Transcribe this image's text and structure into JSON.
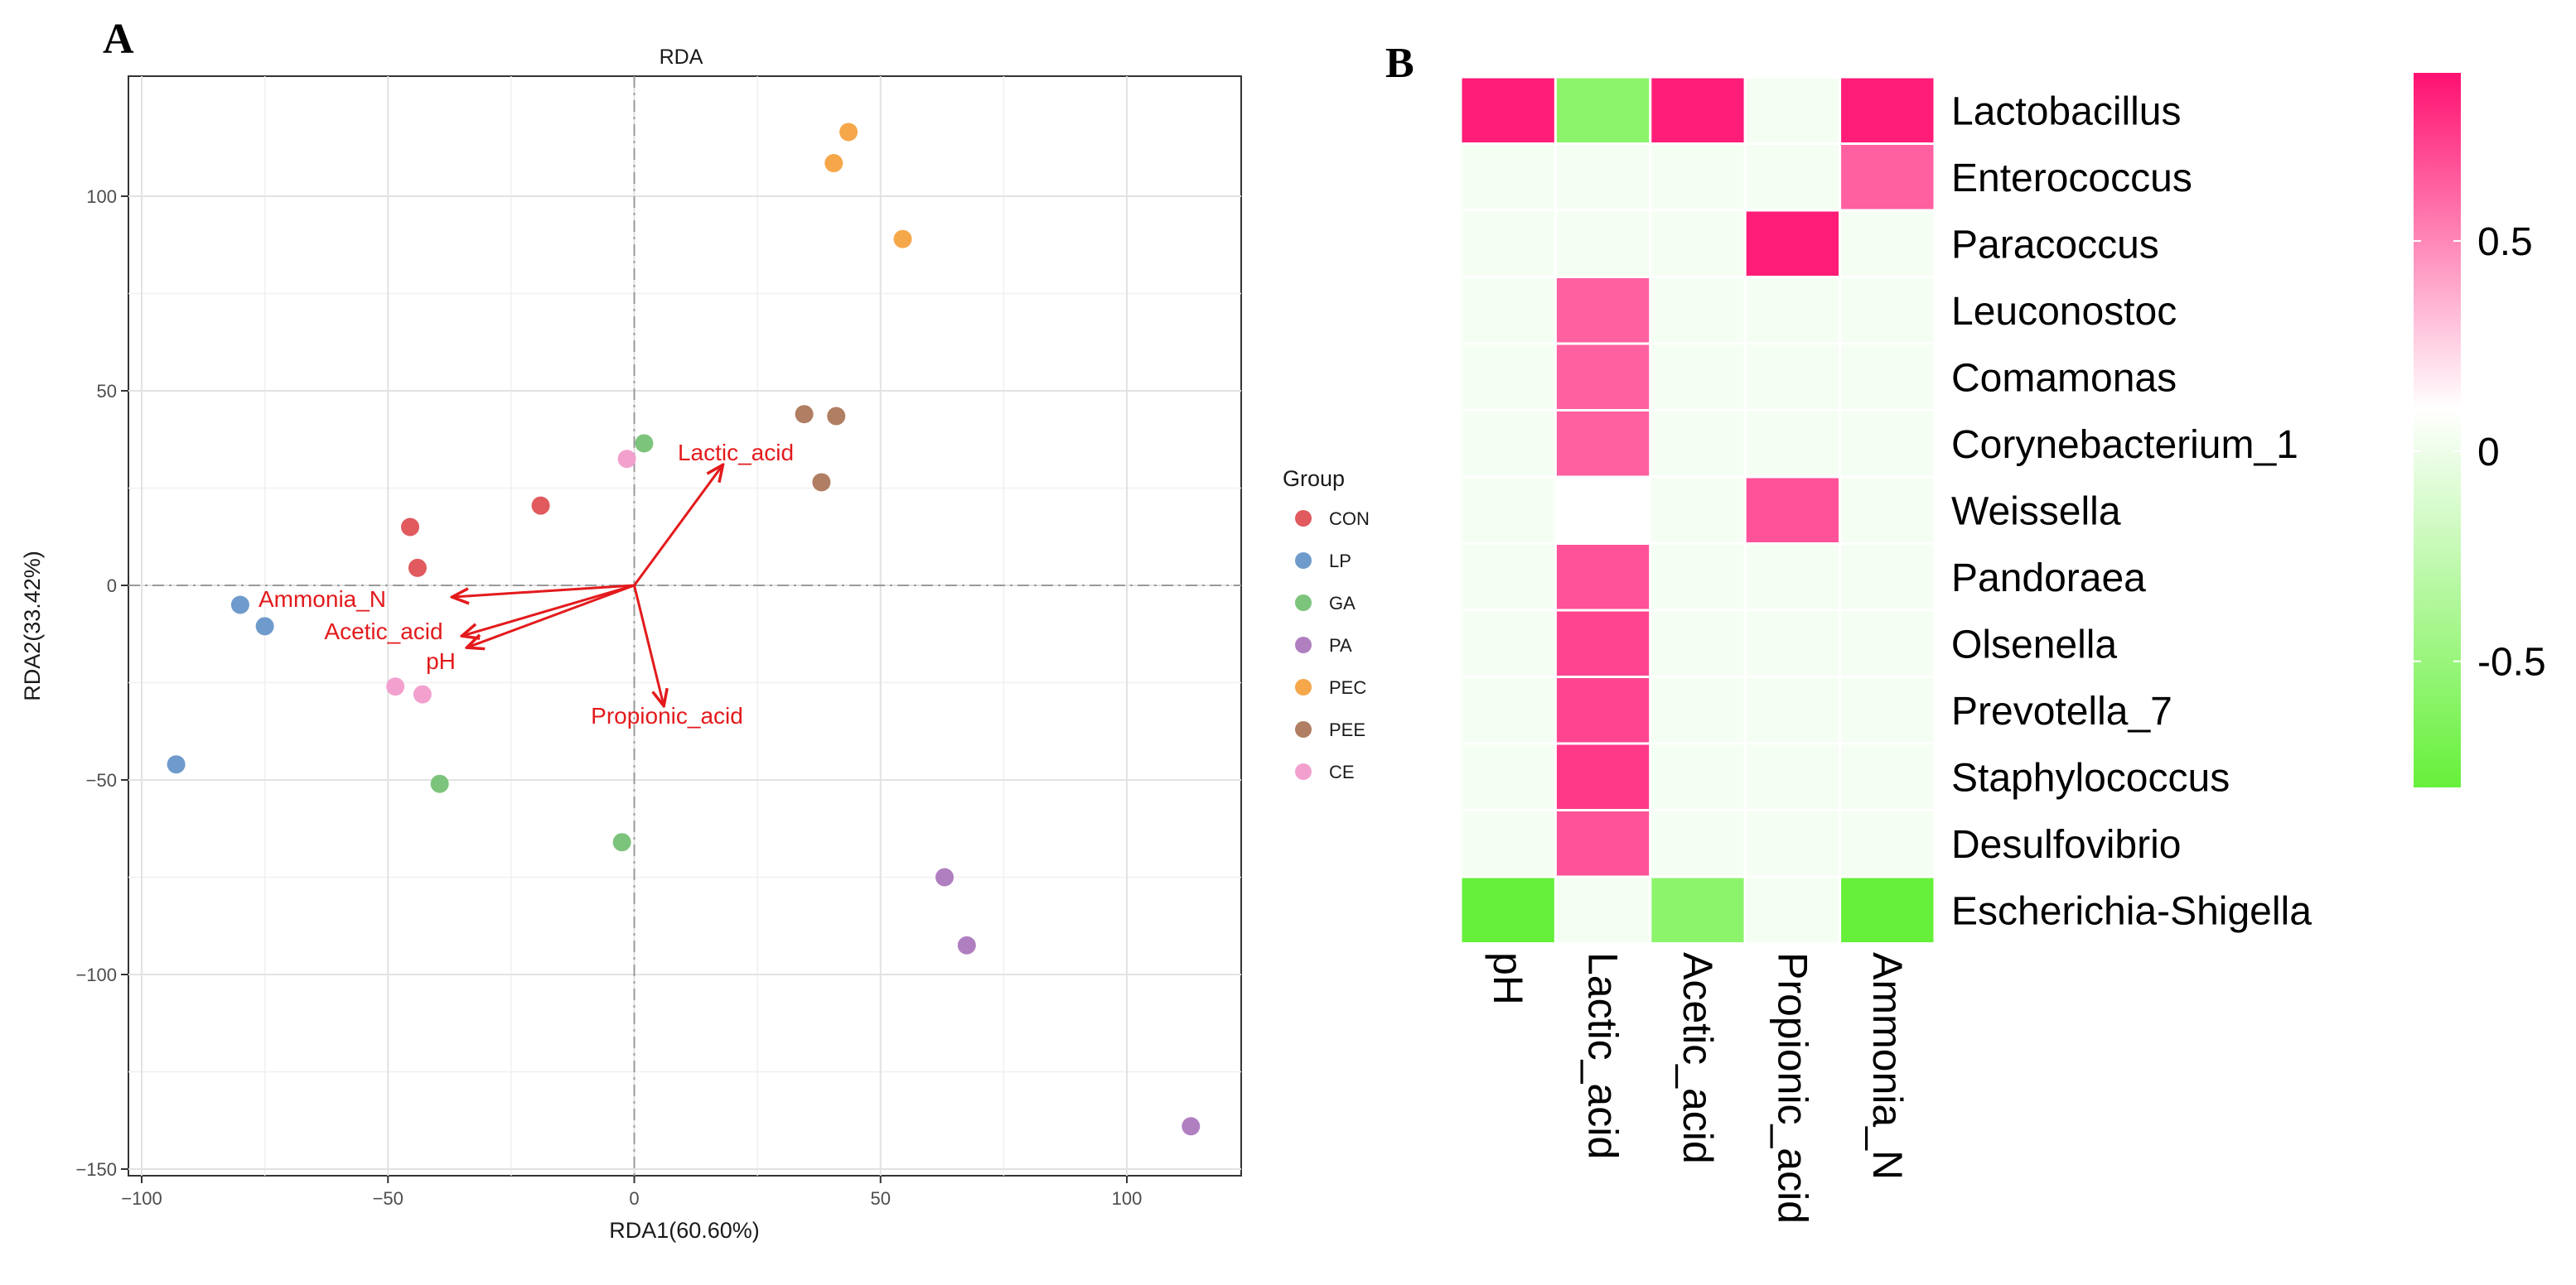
{
  "panel_a": {
    "label": "A",
    "title": "RDA",
    "xlabel": "RDA1(60.60%)",
    "ylabel": "RDA2(33.42%)",
    "legend_title": "Group"
  },
  "panel_b": {
    "label": "B"
  },
  "chart_data": [
    {
      "type": "scatter",
      "title": "RDA",
      "xlabel": "RDA1(60.60%)",
      "ylabel": "RDA2(33.42%)",
      "xlim": [
        -102,
        123
      ],
      "ylim": [
        -151,
        127
      ],
      "xticks": [
        -100,
        -50,
        0,
        50,
        100
      ],
      "yticks": [
        -150,
        -100,
        -50,
        0,
        50,
        100
      ],
      "xtick_labels": [
        "−100",
        "−50",
        "0",
        "50",
        "100"
      ],
      "ytick_labels": [
        "−150",
        "−100",
        "−50",
        "0",
        "50",
        "100"
      ],
      "grid": true,
      "legend_position": "right",
      "series": [
        {
          "name": "CON",
          "color": "#E05A5E",
          "points": [
            [
              -19,
              20.5
            ],
            [
              -45.5,
              15
            ],
            [
              -44,
              4.5
            ]
          ]
        },
        {
          "name": "LP",
          "color": "#6E9BCB",
          "points": [
            [
              -80,
              -5
            ],
            [
              -75,
              -10.5
            ],
            [
              -93,
              -46
            ]
          ]
        },
        {
          "name": "GA",
          "color": "#7CC47C",
          "points": [
            [
              2,
              36.5
            ],
            [
              -39.5,
              -51
            ],
            [
              -2.5,
              -66
            ]
          ]
        },
        {
          "name": "PA",
          "color": "#B07FC0",
          "points": [
            [
              63,
              -75
            ],
            [
              67.5,
              -92.5
            ],
            [
              113,
              -139
            ]
          ]
        },
        {
          "name": "PEC",
          "color": "#F5A74A",
          "points": [
            [
              43.5,
              116.5
            ],
            [
              40.5,
              108.5
            ],
            [
              54.5,
              89
            ]
          ]
        },
        {
          "name": "PEE",
          "color": "#B07E62",
          "points": [
            [
              34.5,
              44
            ],
            [
              41,
              43.5
            ],
            [
              38,
              26.5
            ]
          ]
        },
        {
          "name": "CE",
          "color": "#F2A1CF",
          "points": [
            [
              -1.5,
              32.5
            ],
            [
              -48.5,
              -26
            ],
            [
              -43,
              -28
            ]
          ]
        }
      ],
      "arrows": [
        {
          "label": "Lactic_acid",
          "end": [
            18,
            31
          ]
        },
        {
          "label": "Ammonia_N",
          "end": [
            -37,
            -3
          ]
        },
        {
          "label": "Acetic_acid",
          "end": [
            -35,
            -13
          ]
        },
        {
          "label": "pH",
          "end": [
            -34,
            -16
          ]
        },
        {
          "label": "Propionic_acid",
          "end": [
            6,
            -31
          ]
        }
      ],
      "arrow_color": "#E31A1C"
    },
    {
      "type": "heatmap",
      "rows": [
        "Lactobacillus",
        "Enterococcus",
        "Paracoccus",
        "Leuconostoc",
        "Comamonas",
        "Corynebacterium_1",
        "Weissella",
        "Pandoraea",
        "Olsenella",
        "Prevotella_7",
        "Staphylococcus",
        "Desulfovibrio",
        "Escherichia-Shigella"
      ],
      "columns": [
        "pH",
        "Lactic_acid",
        "Acetic_acid",
        "Propionic_acid",
        "Ammonia_N"
      ],
      "values": [
        [
          0.85,
          -0.6,
          0.85,
          -0.05,
          0.85
        ],
        [
          -0.05,
          -0.05,
          -0.05,
          -0.05,
          0.6
        ],
        [
          -0.05,
          -0.05,
          -0.05,
          0.85,
          -0.05
        ],
        [
          -0.05,
          0.6,
          -0.05,
          -0.05,
          -0.05
        ],
        [
          -0.05,
          0.6,
          -0.05,
          -0.05,
          -0.05
        ],
        [
          -0.05,
          0.6,
          -0.05,
          -0.05,
          -0.05
        ],
        [
          -0.05,
          0.0,
          -0.05,
          0.65,
          -0.05
        ],
        [
          -0.05,
          0.65,
          -0.05,
          -0.05,
          -0.05
        ],
        [
          -0.05,
          0.7,
          -0.05,
          -0.05,
          -0.05
        ],
        [
          -0.05,
          0.7,
          -0.05,
          -0.05,
          -0.05
        ],
        [
          -0.05,
          0.75,
          -0.05,
          -0.05,
          -0.05
        ],
        [
          -0.05,
          0.65,
          -0.05,
          -0.05,
          -0.05
        ],
        [
          -0.8,
          -0.05,
          -0.6,
          -0.05,
          -0.8
        ]
      ],
      "color_range": [
        -0.8,
        0.9
      ],
      "colorbar_ticks": [
        0.5,
        0,
        -0.5
      ],
      "colorbar_tick_labels": [
        "0.5",
        "0",
        "-0.5"
      ]
    }
  ]
}
